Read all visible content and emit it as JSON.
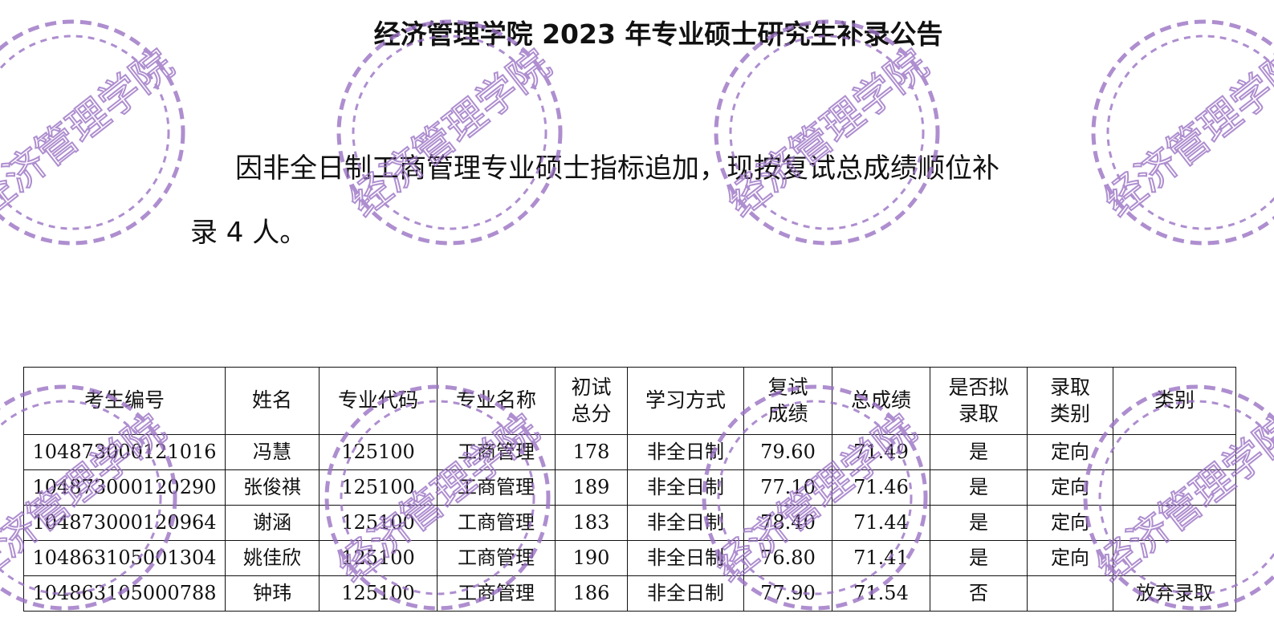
{
  "title": "经济管理学院 2023 年专业硕士研究生补录公告",
  "paragraph": {
    "line1": "因非全日制工商管理专业硕士指标追加，现按复试总成绩顺位补",
    "line2": "录 4 人。"
  },
  "watermark": {
    "text": "经济管理学院",
    "color": "#9b72c4"
  },
  "table": {
    "headers": [
      "考生编号",
      "姓名",
      "专业代码",
      "专业名称",
      "初试\n总分",
      "学习方式",
      "复试\n成绩",
      "总成绩",
      "是否拟\n录取",
      "录取\n类别",
      "类别"
    ],
    "rows": [
      [
        "104873000121016",
        "冯慧",
        "125100",
        "工商管理",
        "178",
        "非全日制",
        "79.60",
        "71.49",
        "是",
        "定向",
        ""
      ],
      [
        "104873000120290",
        "张俊祺",
        "125100",
        "工商管理",
        "189",
        "非全日制",
        "77.10",
        "71.46",
        "是",
        "定向",
        ""
      ],
      [
        "104873000120964",
        "谢涵",
        "125100",
        "工商管理",
        "183",
        "非全日制",
        "78.40",
        "71.44",
        "是",
        "定向",
        ""
      ],
      [
        "104863105001304",
        "姚佳欣",
        "125100",
        "工商管理",
        "190",
        "非全日制",
        "76.80",
        "71.41",
        "是",
        "定向",
        ""
      ],
      [
        "104863105000788",
        "钟玮",
        "125100",
        "工商管理",
        "186",
        "非全日制",
        "77.90",
        "71.54",
        "否",
        "",
        "放弃录取"
      ]
    ]
  }
}
